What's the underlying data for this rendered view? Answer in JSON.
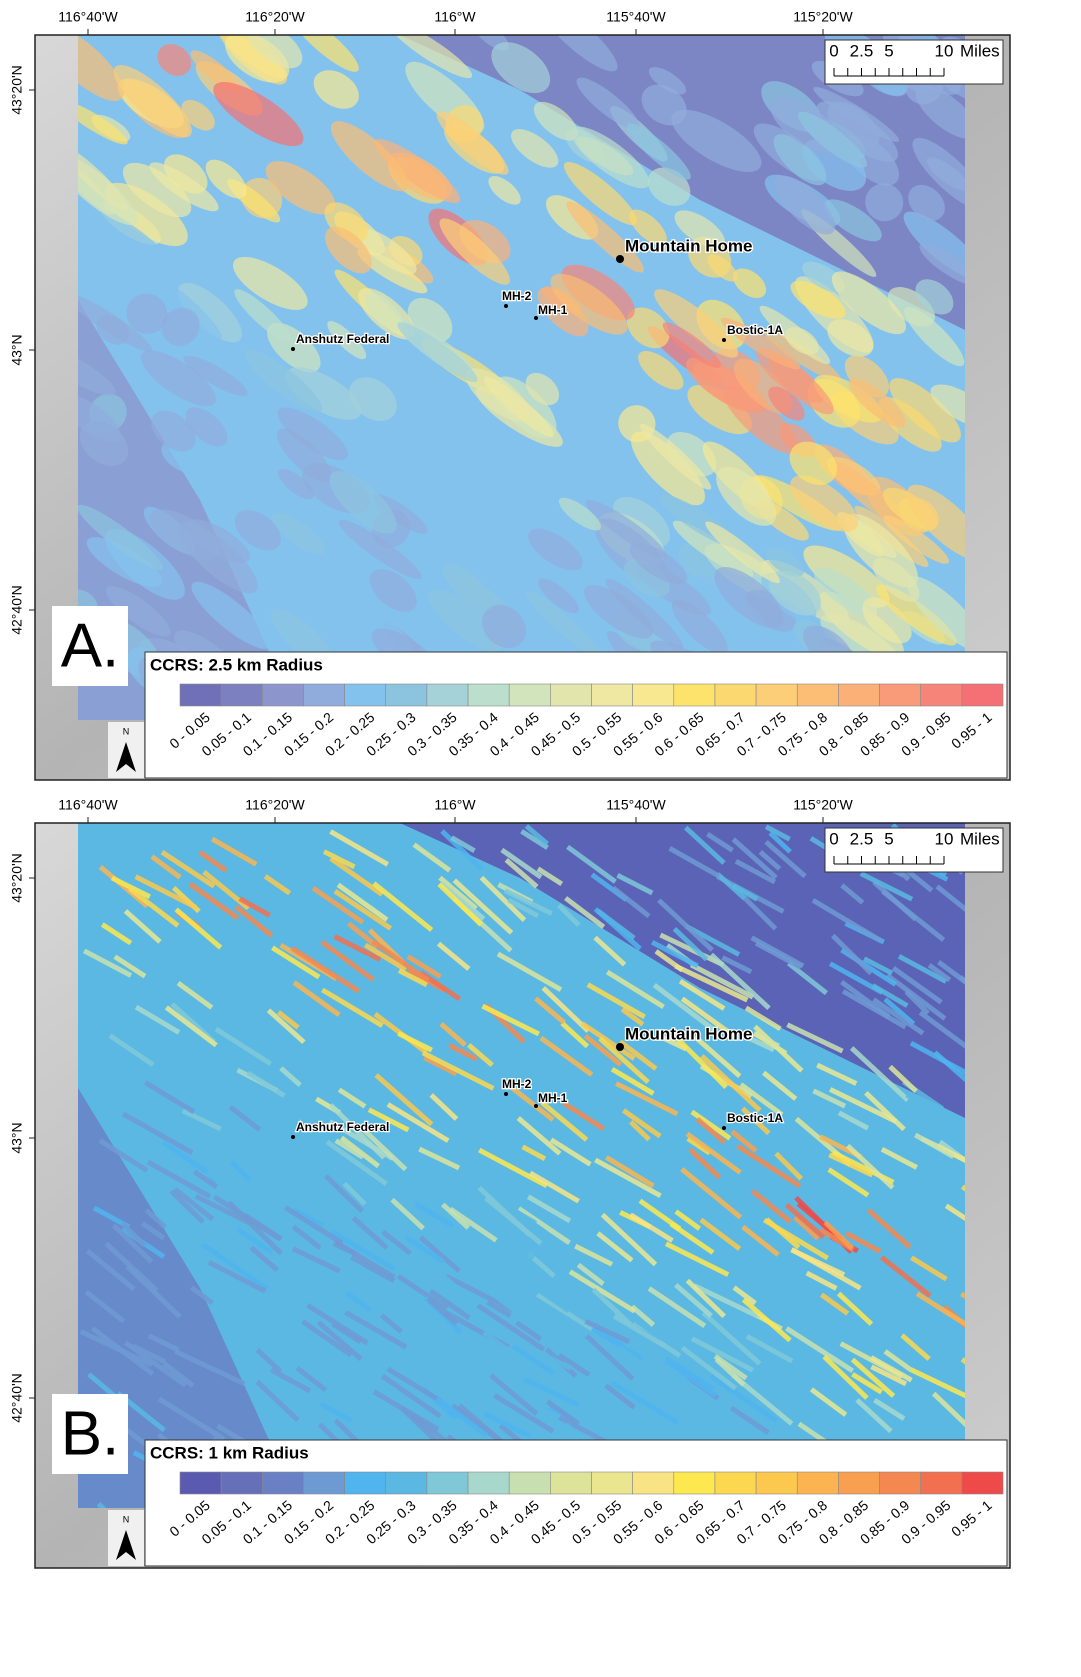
{
  "longitude_labels": [
    "116°40'W",
    "116°20'W",
    "116°W",
    "115°40'W",
    "115°20'W"
  ],
  "latitude_labels": [
    "43°20'N",
    "43°N",
    "42°40'N"
  ],
  "scale_bar": {
    "ticks": [
      0,
      2.5,
      5,
      10
    ],
    "unit": "Miles"
  },
  "north_label": "N",
  "places": [
    "Mountain Home",
    "MH-2",
    "MH-1",
    "Anshutz Federal",
    "Bostic-1A"
  ],
  "panels": [
    {
      "letter": "A.",
      "legend_title": "CCRS: 2.5 km Radius",
      "classes": [
        {
          "label": "0 - 0.05",
          "color": "#7070b8"
        },
        {
          "label": "0.05 - 0.1",
          "color": "#7c80c0"
        },
        {
          "label": "0.1 - 0.15",
          "color": "#8c96cc"
        },
        {
          "label": "0.15 - 0.2",
          "color": "#90acdc"
        },
        {
          "label": "0.2 - 0.25",
          "color": "#84c2ee"
        },
        {
          "label": "0.25 - 0.3",
          "color": "#8cc4e0"
        },
        {
          "label": "0.3 - 0.35",
          "color": "#a4d2d8"
        },
        {
          "label": "0.35 - 0.4",
          "color": "#bcdecc"
        },
        {
          "label": "0.4 - 0.45",
          "color": "#d2e4bc"
        },
        {
          "label": "0.45 - 0.5",
          "color": "#e2e6ac"
        },
        {
          "label": "0.5 - 0.55",
          "color": "#eee8a2"
        },
        {
          "label": "0.55 - 0.6",
          "color": "#f8e890"
        },
        {
          "label": "0.6 - 0.65",
          "color": "#fde36c"
        },
        {
          "label": "0.65 - 0.7",
          "color": "#fcd870"
        },
        {
          "label": "0.7 - 0.75",
          "color": "#fcce78"
        },
        {
          "label": "0.75 - 0.8",
          "color": "#fbbe74"
        },
        {
          "label": "0.8 - 0.85",
          "color": "#fbb078"
        },
        {
          "label": "0.85 - 0.9",
          "color": "#f99a78"
        },
        {
          "label": "0.9 - 0.95",
          "color": "#f78478"
        },
        {
          "label": "0.95 - 1",
          "color": "#f47074"
        }
      ]
    },
    {
      "letter": "B.",
      "legend_title": "CCRS: 1 km Radius",
      "classes": [
        {
          "label": "0 - 0.05",
          "color": "#5a5ab0"
        },
        {
          "label": "0.05 - 0.1",
          "color": "#6670b8"
        },
        {
          "label": "0.1 - 0.15",
          "color": "#6a80c4"
        },
        {
          "label": "0.15 - 0.2",
          "color": "#6e9ad4"
        },
        {
          "label": "0.2 - 0.25",
          "color": "#50b4ee"
        },
        {
          "label": "0.25 - 0.3",
          "color": "#5ab8e2"
        },
        {
          "label": "0.3 - 0.35",
          "color": "#80c8d8"
        },
        {
          "label": "0.35 - 0.4",
          "color": "#a8d8cc"
        },
        {
          "label": "0.4 - 0.45",
          "color": "#c8e0b0"
        },
        {
          "label": "0.45 - 0.5",
          "color": "#dde49a"
        },
        {
          "label": "0.5 - 0.55",
          "color": "#eae690"
        },
        {
          "label": "0.55 - 0.6",
          "color": "#f8e484"
        },
        {
          "label": "0.6 - 0.65",
          "color": "#fde850"
        },
        {
          "label": "0.65 - 0.7",
          "color": "#fcd850"
        },
        {
          "label": "0.7 - 0.75",
          "color": "#fcc84e"
        },
        {
          "label": "0.75 - 0.8",
          "color": "#fbb450"
        },
        {
          "label": "0.8 - 0.85",
          "color": "#f8a050"
        },
        {
          "label": "0.85 - 0.9",
          "color": "#f58850"
        },
        {
          "label": "0.9 - 0.95",
          "color": "#f27050"
        },
        {
          "label": "0.95 - 1",
          "color": "#ee4a4a"
        }
      ]
    }
  ]
}
